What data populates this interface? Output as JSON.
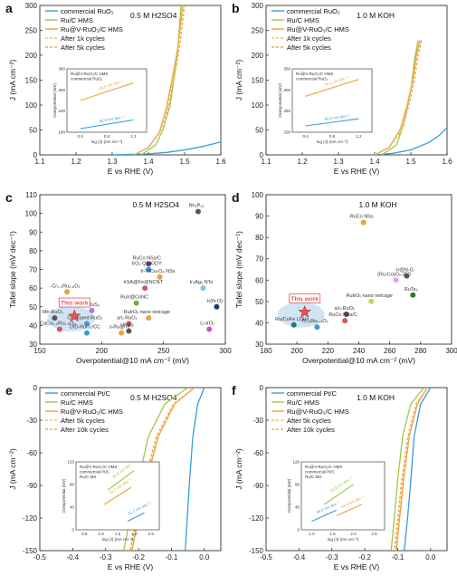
{
  "chart_data": [
    {
      "panel": "a",
      "type": "line",
      "condition": "0.5 M H2SO4",
      "xlabel": "E vs RHE (V)",
      "ylabel": "J (mA cm⁻²)",
      "xlim": [
        1.1,
        1.6
      ],
      "ylim": [
        0,
        300
      ],
      "xticks": [
        "1.1",
        "1.2",
        "1.3",
        "1.4",
        "1.5",
        "1.6"
      ],
      "yticks": [
        "0",
        "50",
        "100",
        "150",
        "200",
        "250",
        "300"
      ],
      "legend": [
        "commercial RuO₂",
        "Ru/C HMS",
        "Ru@V-RuO₂/C HMS",
        "After 1k cycles",
        "After 5k cycles"
      ],
      "series": [
        {
          "name": "commercial RuO₂",
          "color": "#3a9bd9",
          "dash": "",
          "x": [
            1.3,
            1.4,
            1.45,
            1.5,
            1.55,
            1.6
          ],
          "y": [
            0,
            2,
            5,
            10,
            17,
            26
          ]
        },
        {
          "name": "Ru/C HMS",
          "color": "#9dc84a",
          "dash": "",
          "x": [
            1.38,
            1.42,
            1.44,
            1.46,
            1.47,
            1.48,
            1.49
          ],
          "y": [
            0,
            20,
            50,
            100,
            150,
            200,
            300
          ]
        },
        {
          "name": "Ru@V-RuO₂/C HMS",
          "color": "#e8a33c",
          "dash": "",
          "x": [
            1.36,
            1.4,
            1.43,
            1.45,
            1.465,
            1.48,
            1.495
          ],
          "y": [
            0,
            15,
            45,
            95,
            150,
            210,
            300
          ]
        },
        {
          "name": "After 1k cycles",
          "color": "#f2c26a",
          "dash": "3,2",
          "x": [
            1.36,
            1.4,
            1.43,
            1.452,
            1.468,
            1.482,
            1.497
          ],
          "y": [
            0,
            15,
            45,
            95,
            150,
            210,
            300
          ]
        },
        {
          "name": "After 5k cycles",
          "color": "#f0a85a",
          "dash": "3,2",
          "x": [
            1.36,
            1.4,
            1.432,
            1.455,
            1.47,
            1.485,
            1.5
          ],
          "y": [
            0,
            15,
            45,
            95,
            150,
            210,
            300
          ]
        }
      ],
      "inset": {
        "legend": [
          "Ru@V-RuO₂/C HMS",
          "commercial RuO₂"
        ],
        "ylabel": "Overpotential (mV)",
        "xlabel": "log (J) (mA cm⁻²)",
        "xticks": [
          "0.4",
          "0.8",
          "1.2"
        ],
        "yticks": [
          "180",
          "240",
          "300",
          "360"
        ],
        "lines": [
          {
            "color": "#e8a33c",
            "x": [
              0.4,
              1.2
            ],
            "y": [
              270,
              320
            ],
            "label": "45.5 mV dec⁻¹"
          },
          {
            "color": "#3a9bd9",
            "x": [
              0.4,
              1.2
            ],
            "y": [
              190,
              215
            ],
            "label": "65.8 mV dec⁻¹"
          }
        ]
      }
    },
    {
      "panel": "b",
      "type": "line",
      "condition": "1.0 M KOH",
      "xlabel": "E vs RHE (V)",
      "ylabel": "J (mA cm⁻²)",
      "xlim": [
        1.1,
        1.6
      ],
      "ylim": [
        0,
        300
      ],
      "xticks": [
        "1.1",
        "1.2",
        "1.3",
        "1.4",
        "1.5",
        "1.6"
      ],
      "yticks": [
        "0",
        "50",
        "100",
        "150",
        "200",
        "250",
        "300"
      ],
      "legend": [
        "commercial RuO₂",
        "Ru/C HMS",
        "Ru@V-RuO₂/C HMS",
        "After 1k cycles",
        "After 5k cycles"
      ],
      "series": [
        {
          "name": "commercial RuO₂",
          "color": "#3a9bd9",
          "dash": "",
          "x": [
            1.4,
            1.45,
            1.5,
            1.55,
            1.58,
            1.6
          ],
          "y": [
            0,
            3,
            10,
            25,
            40,
            55
          ]
        },
        {
          "name": "Ru/C HMS",
          "color": "#9dc84a",
          "dash": "",
          "x": [
            1.42,
            1.46,
            1.48,
            1.5,
            1.51,
            1.52
          ],
          "y": [
            0,
            20,
            60,
            130,
            190,
            230
          ]
        },
        {
          "name": "Ru@V-RuO₂/C HMS",
          "color": "#e8a33c",
          "dash": "",
          "x": [
            1.4,
            1.44,
            1.47,
            1.49,
            1.505,
            1.515,
            1.525
          ],
          "y": [
            0,
            15,
            50,
            100,
            150,
            200,
            230
          ]
        },
        {
          "name": "After 1k cycles",
          "color": "#f2c26a",
          "dash": "3,2",
          "x": [
            1.4,
            1.44,
            1.472,
            1.492,
            1.507,
            1.518,
            1.528
          ],
          "y": [
            0,
            15,
            50,
            100,
            150,
            200,
            230
          ]
        },
        {
          "name": "After 5k cycles",
          "color": "#f0a85a",
          "dash": "3,2",
          "x": [
            1.4,
            1.44,
            1.475,
            1.495,
            1.51,
            1.52,
            1.53
          ],
          "y": [
            0,
            15,
            50,
            100,
            150,
            200,
            230
          ]
        }
      ],
      "inset": {
        "legend": [
          "Ru@V-RuO₂/C HMS",
          "commercial RuO₂"
        ],
        "ylabel": "Overpotential (mV)",
        "xlabel": "log (J) (mA cm⁻²)",
        "xticks": [
          "0.4",
          "0.8",
          "1.2"
        ],
        "yticks": [
          "200",
          "250",
          "300",
          "350"
        ],
        "lines": [
          {
            "color": "#e8a33c",
            "x": [
              0.4,
              1.2
            ],
            "y": [
              285,
              325
            ],
            "label": "54.1 mV dec⁻¹"
          },
          {
            "color": "#3a9bd9",
            "x": [
              0.4,
              1.2
            ],
            "y": [
              215,
              232
            ],
            "label": "58.5 mV dec⁻¹"
          }
        ]
      }
    },
    {
      "panel": "c",
      "type": "scatter",
      "condition": "0.5 M H2SO4",
      "xlabel": "Overpotential@10 mA cm⁻² (mV)",
      "ylabel": "Tafel slope (mV dec⁻¹)",
      "xlim": [
        150,
        300
      ],
      "ylim": [
        30,
        110
      ],
      "xticks": [
        "150",
        "200",
        "250",
        "300"
      ],
      "yticks": [
        "30",
        "40",
        "50",
        "60",
        "70",
        "80",
        "90",
        "100",
        "110"
      ],
      "highlight": "This work",
      "points": [
        {
          "label": "Rh₂P₁₃",
          "x": 278,
          "y": 101,
          "color": "#555555"
        },
        {
          "label": "RuCo NSs/C",
          "x": 238,
          "y": 73,
          "color": "#6a3fa0"
        },
        {
          "label": "IrO₂ QD/GDY",
          "x": 238,
          "y": 70,
          "color": "#3a9bd9"
        },
        {
          "label": "Ir-NiCo₂O₄ NSs",
          "x": 247,
          "y": 66,
          "color": "#e8a33c"
        },
        {
          "label": "Ir₄Ag₅ NTs",
          "x": 282,
          "y": 60,
          "color": "#7bc4e8"
        },
        {
          "label": "IrSA@Fe@NCNT",
          "x": 235,
          "y": 60,
          "color": "#d44c8a"
        },
        {
          "label": "-Cr₀.₂Ru₀.₈O₂",
          "x": 172,
          "y": 58,
          "color": "#e8a33c"
        },
        {
          "label": "RuIr@CoNC",
          "x": 228,
          "y": 52,
          "color": "#6ab04c"
        },
        {
          "label": "Ru/RuS₂",
          "x": 192,
          "y": 48,
          "color": "#b07ad9"
        },
        {
          "label": "Mn-RuO₂",
          "x": 162,
          "y": 44,
          "color": "#555555"
        },
        {
          "label": "RuIrOₓ nano netcage",
          "x": 238,
          "y": 44,
          "color": "#e8a33c"
        },
        {
          "label": "Co-doped RuO₂",
          "x": 188,
          "y": 41,
          "color": "#3a9bd9"
        },
        {
          "label": "a/c-RuO₂",
          "x": 222,
          "y": 41,
          "color": "#e05555"
        },
        {
          "label": "Ir(N-O)",
          "x": 293,
          "y": 50,
          "color": "#1f3a7a"
        },
        {
          "label": "CaCo₀.₅Ru₀.₅O₃",
          "x": 166,
          "y": 38,
          "color": "#e05555"
        },
        {
          "label": "Li-IrO₂",
          "x": 287,
          "y": 38,
          "color": "#d44cd4"
        },
        {
          "label": "s-Ru@Te",
          "x": 216,
          "y": 36,
          "color": "#e8a33c"
        },
        {
          "label": "Uf-Ru",
          "x": 222,
          "y": 37,
          "color": "#555555"
        },
        {
          "label": "UfD-RuO₂/CC",
          "x": 188,
          "y": 36,
          "color": "#3a9bd9"
        },
        {
          "label": "This work",
          "x": 178,
          "y": 45,
          "color": "#e05555",
          "star": true
        }
      ]
    },
    {
      "panel": "d",
      "type": "scatter",
      "condition": "1.0 M KOH",
      "xlabel": "Overpotential@10 mA cm⁻² (mV)",
      "ylabel": "Tafel slope (mV dec⁻¹)",
      "xlim": [
        180,
        300
      ],
      "ylim": [
        30,
        100
      ],
      "xticks": [
        "180",
        "200",
        "220",
        "240",
        "260",
        "280",
        "300"
      ],
      "yticks": [
        "30",
        "40",
        "50",
        "60",
        "70",
        "80",
        "90",
        "100"
      ],
      "highlight": "This work",
      "points": [
        {
          "label": "RuCo NSs",
          "x": 243,
          "y": 87,
          "color": "#e8a33c"
        },
        {
          "label": "(Ru-Co)Oₓ-350",
          "x": 264,
          "y": 60,
          "color": "#d9a8e8"
        },
        {
          "label": "Ir@N-G",
          "x": 271,
          "y": 62,
          "color": "#555555"
        },
        {
          "label": "RuIrOₓ nano netcage",
          "x": 248,
          "y": 50,
          "color": "#c8d94a"
        },
        {
          "label": "RuTe₂",
          "x": 275,
          "y": 53,
          "color": "#2a7a3a"
        },
        {
          "label": "a/c-RuO₂",
          "x": 232,
          "y": 44,
          "color": "#555555"
        },
        {
          "label": "RuCo NSs/C",
          "x": 231,
          "y": 41,
          "color": "#e05555"
        },
        {
          "label": "Ir₀.₆Ru₀.₄O₂",
          "x": 213,
          "y": 38,
          "color": "#3a9bd9"
        },
        {
          "label": "Ru/CoFe LDHs",
          "x": 198,
          "y": 39,
          "color": "#1f7a8a"
        },
        {
          "label": "This work",
          "x": 205,
          "y": 45,
          "color": "#e05555",
          "star": true
        }
      ]
    },
    {
      "panel": "e",
      "type": "line",
      "condition": "0.5 M H2SO4",
      "xlabel": "E vs RHE (V)",
      "ylabel": "J (mA cm⁻²)",
      "xlim": [
        -0.5,
        0.05
      ],
      "ylim": [
        -150,
        0
      ],
      "xticks": [
        "-0.5",
        "-0.4",
        "-0.3",
        "-0.2",
        "-0.1",
        "0.0"
      ],
      "yticks": [
        "-150",
        "-120",
        "-90",
        "-60",
        "-30",
        "0"
      ],
      "legend": [
        "commercial Pt/C",
        "Ru/C HMS",
        "Ru@V-RuO₂/C HMS",
        "After 5k cycles",
        "After 10k cycles"
      ],
      "series": [
        {
          "name": "commercial Pt/C",
          "color": "#3a9bd9",
          "dash": "",
          "x": [
            0.0,
            -0.02,
            -0.035,
            -0.045,
            -0.052,
            -0.058
          ],
          "y": [
            0,
            -15,
            -45,
            -85,
            -120,
            -150
          ]
        },
        {
          "name": "Ru/C HMS",
          "color": "#9dc84a",
          "dash": "",
          "x": [
            -0.05,
            -0.12,
            -0.17,
            -0.2,
            -0.225,
            -0.245
          ],
          "y": [
            0,
            -15,
            -45,
            -85,
            -120,
            -150
          ]
        },
        {
          "name": "Ru@V-RuO₂/C HMS",
          "color": "#e8a33c",
          "dash": "",
          "x": [
            -0.03,
            -0.09,
            -0.14,
            -0.175,
            -0.2,
            -0.22
          ],
          "y": [
            0,
            -15,
            -45,
            -85,
            -120,
            -150
          ]
        },
        {
          "name": "After 5k cycles",
          "color": "#f2c26a",
          "dash": "3,2",
          "x": [
            -0.03,
            -0.092,
            -0.143,
            -0.178,
            -0.203,
            -0.223
          ],
          "y": [
            0,
            -15,
            -45,
            -85,
            -120,
            -150
          ]
        },
        {
          "name": "After 10k cycles",
          "color": "#f0a85a",
          "dash": "3,2",
          "x": [
            -0.03,
            -0.094,
            -0.146,
            -0.181,
            -0.206,
            -0.226
          ],
          "y": [
            0,
            -15,
            -45,
            -85,
            -120,
            -150
          ]
        }
      ],
      "inset": {
        "legend": [
          "Ru@V-RuO₂/C HMS",
          "commercial Pt/C",
          "Ru/C MS"
        ],
        "ylabel": "Overpotential (mV)",
        "xlabel": "log (J) (mA cm⁻²)",
        "xticks": [
          "0.5",
          "1.0",
          "1.5",
          "2.0",
          "2.5"
        ],
        "yticks": [
          "0",
          "40",
          "80",
          "120"
        ],
        "lines": [
          {
            "color": "#9dc84a",
            "x": [
              1.2,
              2.0
            ],
            "y": [
              70,
              105
            ],
            "label": "89.9 mV dec⁻¹"
          },
          {
            "color": "#e8a33c",
            "x": [
              1.1,
              1.9
            ],
            "y": [
              45,
              75
            ],
            "label": "51.2 mV dec⁻¹"
          },
          {
            "color": "#3a9bd9",
            "x": [
              1.8,
              2.3
            ],
            "y": [
              15,
              30
            ],
            "label": "31.2 mV dec⁻¹"
          }
        ]
      }
    },
    {
      "panel": "f",
      "type": "line",
      "condition": "1.0 M KOH",
      "xlabel": "E vs RHE (V)",
      "ylabel": "J (mA cm⁻²)",
      "xlim": [
        -0.5,
        0.05
      ],
      "ylim": [
        -150,
        0
      ],
      "xticks": [
        "-0.5",
        "-0.4",
        "-0.3",
        "-0.2",
        "-0.1",
        "0.0"
      ],
      "yticks": [
        "-150",
        "-120",
        "-90",
        "-60",
        "-30",
        "0"
      ],
      "legend": [
        "commercial Pt/C",
        "Ru/C HMS",
        "Ru@V-RuO₂/C HMS",
        "After 5k cycles",
        "After 10k cycles"
      ],
      "series": [
        {
          "name": "commercial Pt/C",
          "color": "#3a9bd9",
          "dash": "",
          "x": [
            0.0,
            -0.03,
            -0.05,
            -0.06,
            -0.07,
            -0.08
          ],
          "y": [
            0,
            -15,
            -45,
            -85,
            -120,
            -150
          ]
        },
        {
          "name": "Ru/C HMS",
          "color": "#9dc84a",
          "dash": "",
          "x": [
            -0.02,
            -0.06,
            -0.085,
            -0.1,
            -0.11,
            -0.12
          ],
          "y": [
            0,
            -15,
            -45,
            -85,
            -120,
            -150
          ]
        },
        {
          "name": "Ru@V-RuO₂/C HMS",
          "color": "#e8a33c",
          "dash": "",
          "x": [
            -0.01,
            -0.04,
            -0.065,
            -0.082,
            -0.094,
            -0.104
          ],
          "y": [
            0,
            -15,
            -45,
            -85,
            -120,
            -150
          ]
        },
        {
          "name": "After 5k cycles",
          "color": "#f2c26a",
          "dash": "3,2",
          "x": [
            -0.01,
            -0.042,
            -0.067,
            -0.085,
            -0.097,
            -0.107
          ],
          "y": [
            0,
            -15,
            -45,
            -85,
            -120,
            -150
          ]
        },
        {
          "name": "After 10k cycles",
          "color": "#f0a85a",
          "dash": "3,2",
          "x": [
            -0.01,
            -0.044,
            -0.069,
            -0.088,
            -0.1,
            -0.11
          ],
          "y": [
            0,
            -15,
            -45,
            -85,
            -120,
            -150
          ]
        }
      ],
      "inset": {
        "legend": [
          "Ru@V-RuO₂/C HMS",
          "commercial Pt/C",
          "Ru/C MS"
        ],
        "ylabel": "Overpotential (mV)",
        "xlabel": "log (J) (mA cm⁻²)",
        "xticks": [
          "1.0",
          "1.5",
          "2.0",
          "2.5"
        ],
        "yticks": [
          "0",
          "40",
          "80",
          "120"
        ],
        "lines": [
          {
            "color": "#9dc84a",
            "x": [
              1.3,
              2.0
            ],
            "y": [
              45,
              80
            ],
            "label": "55.8 mV dec⁻¹"
          },
          {
            "color": "#e8a33c",
            "x": [
              1.6,
              2.2
            ],
            "y": [
              25,
              45
            ],
            "label": "43.6 mV dec⁻¹"
          },
          {
            "color": "#3a9bd9",
            "x": [
              1.0,
              1.6
            ],
            "y": [
              15,
              35
            ],
            "label": "36.6 mV dec⁻¹"
          }
        ]
      }
    }
  ]
}
